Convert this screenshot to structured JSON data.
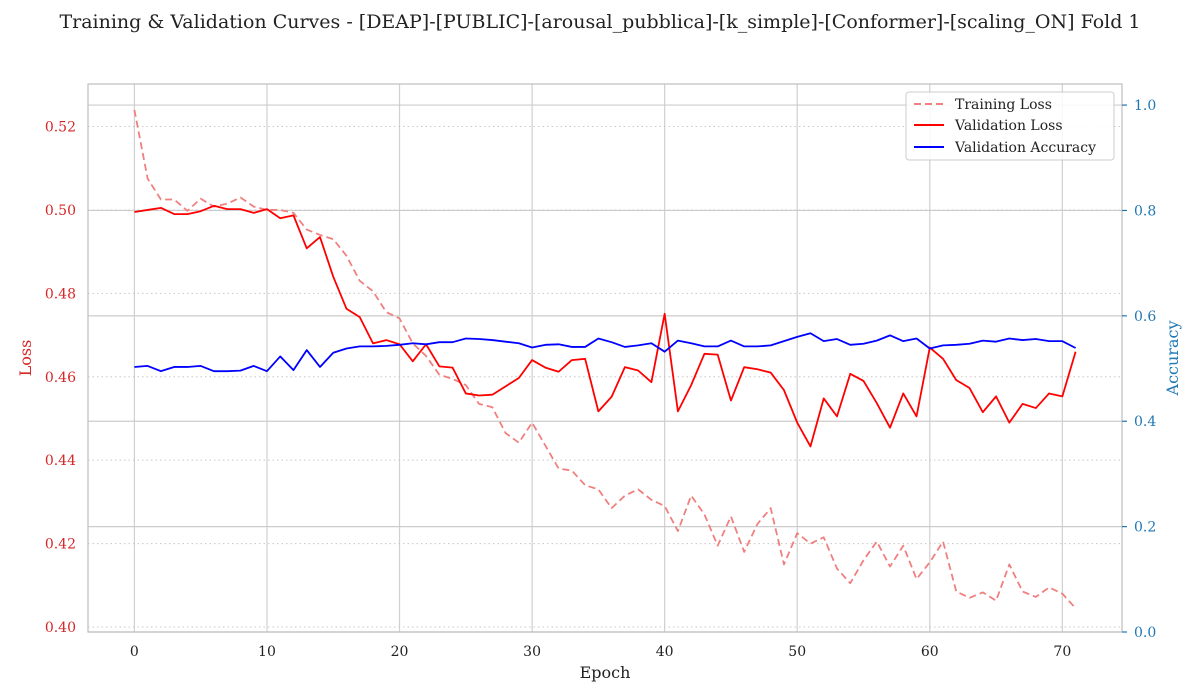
{
  "chart_data": {
    "type": "line",
    "title": "Training & Validation Curves - [DEAP]-[PUBLIC]-[arousal_pubblica]-[k_simple]-[Conformer]-[scaling_ON] Fold 1",
    "xlabel": "Epoch",
    "ylabel_left": "Loss",
    "ylabel_right": "Accuracy",
    "xlim": [
      -3.5,
      74.5
    ],
    "ylim_left": [
      0.3988,
      0.5302
    ],
    "ylim_right": [
      0.0,
      1.04
    ],
    "x_ticks": [
      "0",
      "10",
      "20",
      "30",
      "40",
      "50",
      "60",
      "70"
    ],
    "x_tick_values": [
      0,
      10,
      20,
      30,
      40,
      50,
      60,
      70
    ],
    "y_left_ticks": [
      "0.40",
      "0.42",
      "0.44",
      "0.46",
      "0.48",
      "0.50",
      "0.52"
    ],
    "y_left_tick_values": [
      0.4,
      0.42,
      0.44,
      0.46,
      0.48,
      0.5,
      0.52
    ],
    "y_right_ticks": [
      "0.0",
      "0.2",
      "0.4",
      "0.6",
      "0.8",
      "1.0"
    ],
    "y_right_tick_values": [
      0.0,
      0.2,
      0.4,
      0.6,
      0.8,
      1.0
    ],
    "grid": true,
    "legend_position": "top-right",
    "colors": {
      "training_loss": "#f08080",
      "validation_loss": "#ff0000",
      "validation_accuracy": "#0000ff",
      "left_axis": "#d62728",
      "right_axis": "#1f77b4"
    },
    "series": [
      {
        "name": "Training Loss",
        "axis": "left",
        "style": "dashed",
        "values": [
          0.524,
          0.5075,
          0.5025,
          0.5025,
          0.4998,
          0.5027,
          0.5008,
          0.5015,
          0.503,
          0.5008,
          0.5,
          0.5,
          0.4993,
          0.4953,
          0.494,
          0.493,
          0.489,
          0.483,
          0.4805,
          0.4755,
          0.474,
          0.468,
          0.465,
          0.4605,
          0.4595,
          0.458,
          0.4535,
          0.4527,
          0.4465,
          0.4442,
          0.449,
          0.4435,
          0.438,
          0.4375,
          0.434,
          0.433,
          0.4285,
          0.4315,
          0.433,
          0.4305,
          0.429,
          0.423,
          0.4315,
          0.427,
          0.4195,
          0.4265,
          0.418,
          0.4247,
          0.4285,
          0.415,
          0.4225,
          0.42,
          0.4215,
          0.414,
          0.4105,
          0.416,
          0.4205,
          0.4145,
          0.4195,
          0.4115,
          0.4155,
          0.4205,
          0.4085,
          0.407,
          0.4083,
          0.4063,
          0.415,
          0.4085,
          0.4072,
          0.4095,
          0.408,
          0.4045
        ]
      },
      {
        "name": "Validation Loss",
        "axis": "left",
        "style": "solid",
        "values": [
          0.4995,
          0.5,
          0.5005,
          0.499,
          0.499,
          0.4997,
          0.501,
          0.5002,
          0.5002,
          0.4993,
          0.5002,
          0.498,
          0.4987,
          0.4908,
          0.4935,
          0.484,
          0.4763,
          0.4743,
          0.468,
          0.4688,
          0.4678,
          0.4637,
          0.4678,
          0.4625,
          0.4622,
          0.456,
          0.4555,
          0.4557,
          0.4577,
          0.4597,
          0.464,
          0.4622,
          0.4612,
          0.464,
          0.4643,
          0.4517,
          0.4552,
          0.4623,
          0.4615,
          0.4587,
          0.4751,
          0.4517,
          0.458,
          0.4655,
          0.4653,
          0.4543,
          0.4623,
          0.4618,
          0.461,
          0.4568,
          0.449,
          0.4433,
          0.4548,
          0.4505,
          0.4607,
          0.459,
          0.4537,
          0.4478,
          0.456,
          0.4505,
          0.467,
          0.4643,
          0.4592,
          0.4573,
          0.4515,
          0.4553,
          0.449,
          0.4535,
          0.4525,
          0.456,
          0.4553,
          0.466
        ]
      },
      {
        "name": "Validation Accuracy",
        "axis": "right",
        "style": "solid",
        "values": [
          0.503,
          0.505,
          0.495,
          0.503,
          0.503,
          0.505,
          0.495,
          0.495,
          0.496,
          0.505,
          0.495,
          0.523,
          0.497,
          0.535,
          0.503,
          0.53,
          0.538,
          0.542,
          0.542,
          0.543,
          0.545,
          0.548,
          0.546,
          0.55,
          0.55,
          0.557,
          0.556,
          0.554,
          0.551,
          0.548,
          0.54,
          0.545,
          0.546,
          0.541,
          0.541,
          0.557,
          0.55,
          0.541,
          0.544,
          0.548,
          0.532,
          0.553,
          0.548,
          0.542,
          0.542,
          0.553,
          0.542,
          0.542,
          0.544,
          0.552,
          0.56,
          0.567,
          0.552,
          0.556,
          0.545,
          0.547,
          0.553,
          0.563,
          0.552,
          0.557,
          0.538,
          0.544,
          0.545,
          0.547,
          0.553,
          0.551,
          0.557,
          0.554,
          0.556,
          0.552,
          0.552,
          0.539
        ]
      }
    ]
  }
}
